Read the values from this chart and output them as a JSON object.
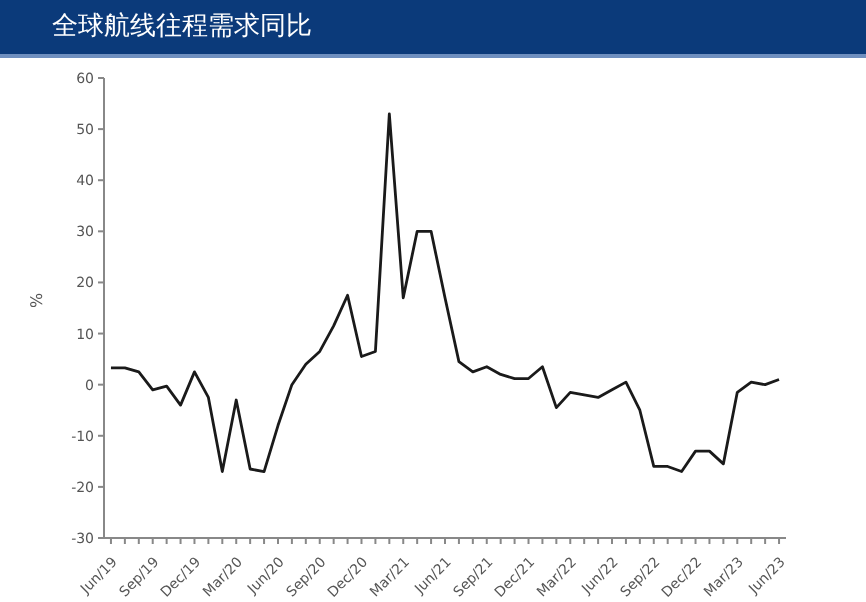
{
  "chart_data": {
    "type": "line",
    "title": "全球航线往程需求同比",
    "ylabel": "%",
    "categories": [
      "Jun/19",
      null,
      null,
      "Sep/19",
      null,
      null,
      "Dec/19",
      null,
      null,
      "Mar/20",
      null,
      null,
      "Jun/20",
      null,
      null,
      "Sep/20",
      null,
      null,
      "Dec/20",
      null,
      null,
      "Mar/21",
      null,
      null,
      "Jun/21",
      null,
      null,
      "Sep/21",
      null,
      null,
      "Dec/21",
      null,
      null,
      "Mar/22",
      null,
      null,
      "Jun/22",
      null,
      null,
      "Sep/22",
      null,
      null,
      "Dec/22",
      null,
      null,
      "Mar/23",
      null,
      null,
      "Jun/23"
    ],
    "series": [
      {
        "color": "#1a1a1a",
        "values": [
          3.3,
          3.3,
          2.5,
          -1,
          -0.3,
          -4,
          2.5,
          -2.5,
          -17,
          -3,
          -16.5,
          -17,
          -8,
          0,
          4,
          6.5,
          11.5,
          17.5,
          5.5,
          6.5,
          53,
          17,
          30,
          30,
          17,
          4.5,
          2.5,
          3.5,
          2,
          1.2,
          1.2,
          3.5,
          -4.5,
          -1.5,
          -2,
          -2.5,
          -1,
          0.5,
          -5,
          -16,
          -16,
          -17,
          -13,
          -13,
          -15.5,
          -1.5,
          0.5,
          0,
          1
        ]
      }
    ],
    "ylim": [
      -30,
      60
    ],
    "yticks": [
      -30,
      -20,
      -10,
      0,
      10,
      20,
      30,
      40,
      50,
      60
    ],
    "grid": false,
    "legend": false,
    "marker": "none",
    "line_style": "solid"
  }
}
